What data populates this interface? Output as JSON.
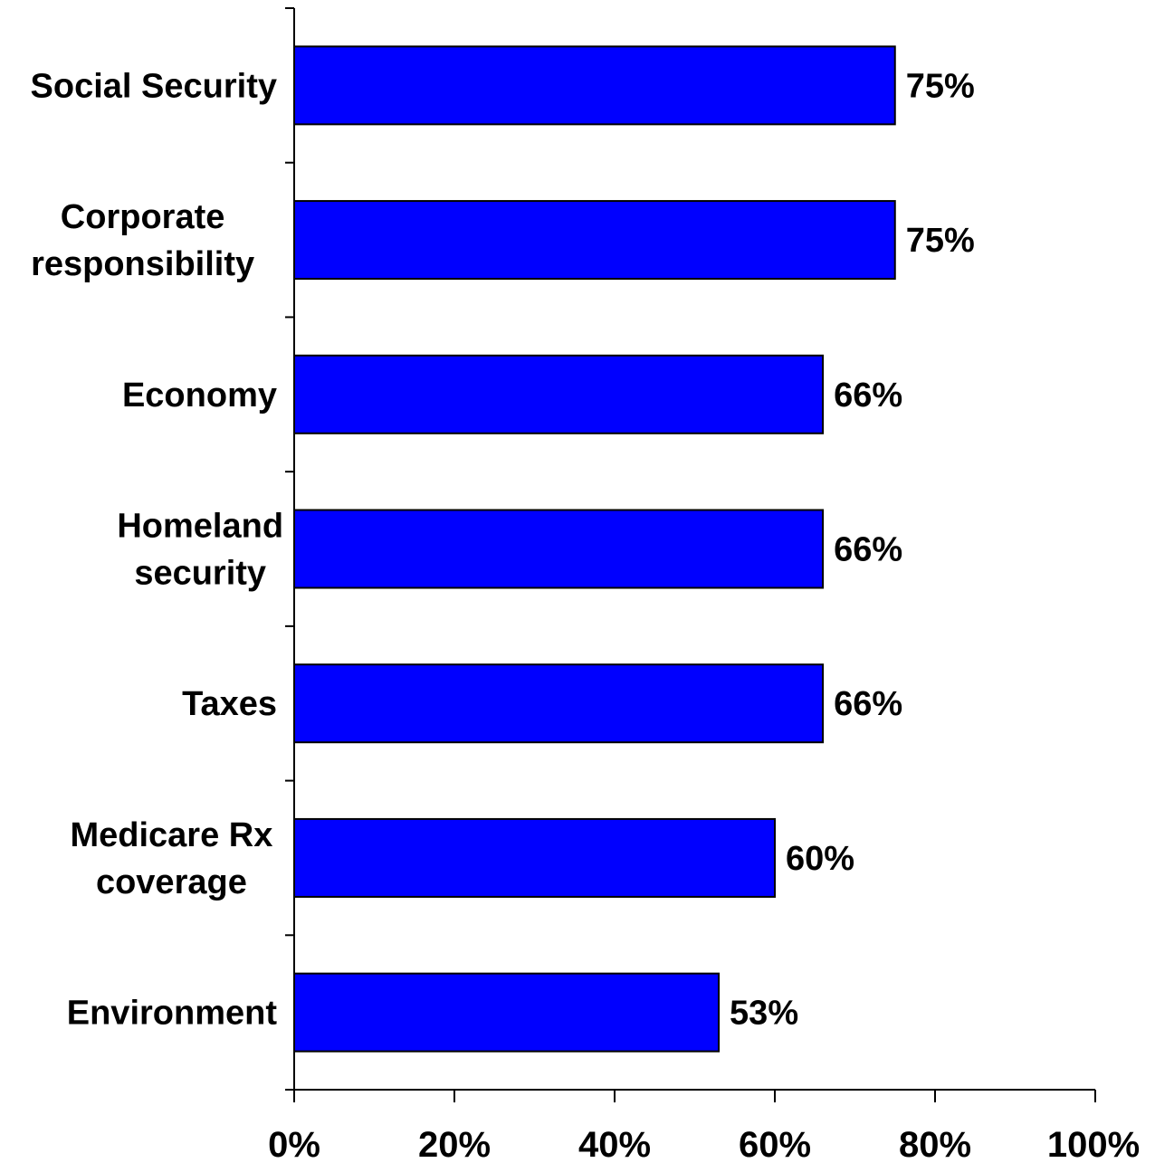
{
  "chart_data": {
    "type": "bar",
    "orientation": "horizontal",
    "categories": [
      [
        "Social Security"
      ],
      [
        "Corporate",
        "responsibility"
      ],
      [
        "Economy"
      ],
      [
        "Homeland",
        "security"
      ],
      [
        "Taxes"
      ],
      [
        "Medicare Rx",
        "coverage"
      ],
      [
        "Environment"
      ]
    ],
    "values": [
      75,
      75,
      66,
      66,
      66,
      60,
      53
    ],
    "value_labels": [
      "75%",
      "75%",
      "66%",
      "66%",
      "66%",
      "60%",
      "53%"
    ],
    "xlim": [
      0,
      100
    ],
    "x_ticks": [
      0,
      20,
      40,
      60,
      80,
      100
    ],
    "x_tick_labels": [
      "0%",
      "20%",
      "40%",
      "60%",
      "80%",
      "100%"
    ],
    "title": "",
    "xlabel": "",
    "ylabel": "",
    "grid": false,
    "legend": "none",
    "bar_color": "#0000FF",
    "bar_edge_color": "#000000"
  }
}
